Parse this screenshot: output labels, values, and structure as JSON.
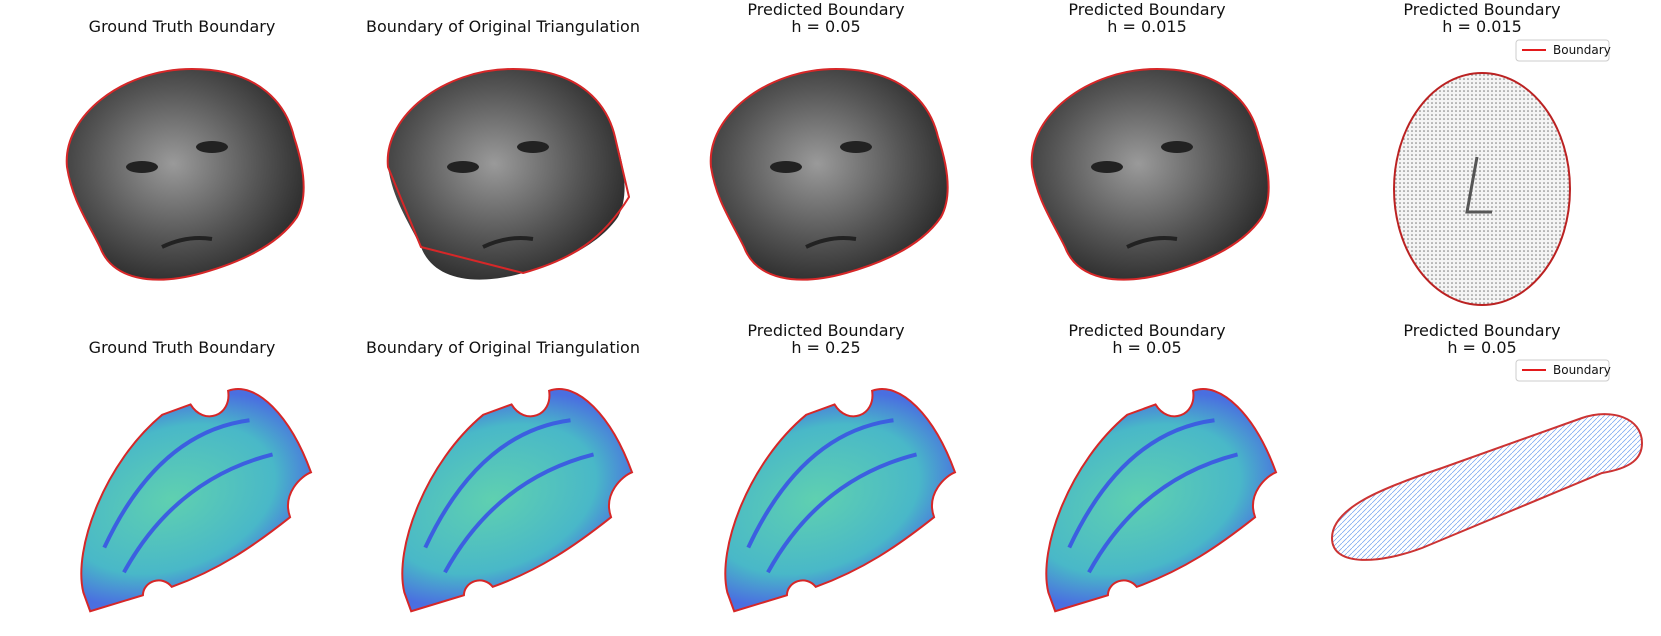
{
  "rows": [
    {
      "panels": [
        {
          "title": [
            "Ground Truth Boundary"
          ]
        },
        {
          "title": [
            "Boundary of Original Triangulation"
          ]
        },
        {
          "title": [
            "Predicted Boundary",
            "h = 0.05"
          ]
        },
        {
          "title": [
            "Predicted Boundary",
            "h = 0.015"
          ]
        },
        {
          "title": [
            "Predicted Boundary",
            "h = 0.015"
          ],
          "legend": "Boundary"
        }
      ]
    },
    {
      "panels": [
        {
          "title": [
            "Ground Truth Boundary"
          ]
        },
        {
          "title": [
            "Boundary of Original Triangulation"
          ]
        },
        {
          "title": [
            "Predicted Boundary",
            "h = 0.25"
          ]
        },
        {
          "title": [
            "Predicted Boundary",
            "h = 0.05"
          ]
        },
        {
          "title": [
            "Predicted Boundary",
            "h = 0.05"
          ],
          "legend": "Boundary"
        }
      ]
    }
  ]
}
